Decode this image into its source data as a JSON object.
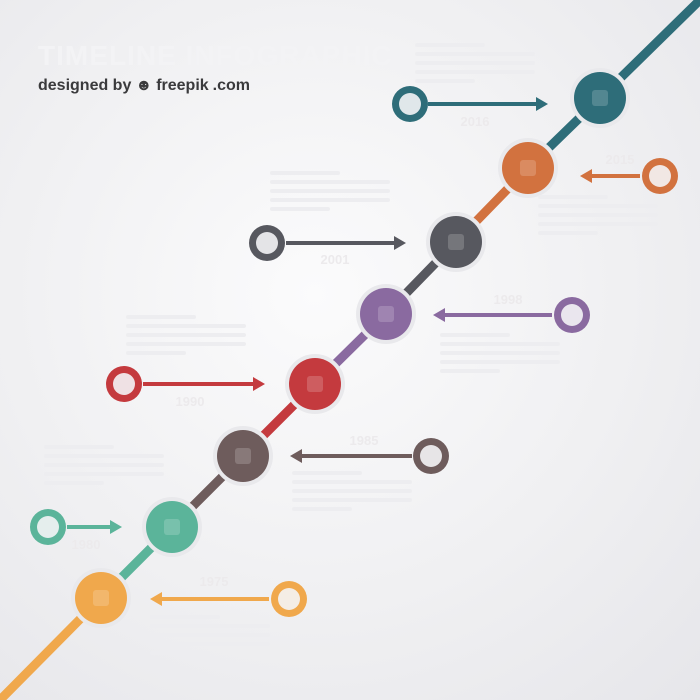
{
  "header": {
    "title": "TIMELINE INFOGRAPHIC",
    "credit_prefix": "designed by",
    "credit_brand": "freepik",
    "credit_suffix": ".com"
  },
  "colors": {
    "teal_dark": "#2e6d79",
    "orange": "#d2723f",
    "slate": "#57585f",
    "purple": "#8a6aa0",
    "red": "#c43a3e",
    "brown": "#6e5c5c",
    "mint": "#5bb49a",
    "yellow": "#f0a84c"
  },
  "milestones": [
    {
      "id": "m1",
      "year": "2016",
      "color": "#2e6d79",
      "icon": "cloud-icon"
    },
    {
      "id": "m2",
      "year": "2015",
      "color": "#d2723f",
      "icon": "gear-icon"
    },
    {
      "id": "m3",
      "year": "2001",
      "color": "#57585f",
      "icon": "chart-icon"
    },
    {
      "id": "m4",
      "year": "1998",
      "color": "#8a6aa0",
      "icon": "diamond-icon"
    },
    {
      "id": "m5",
      "year": "1990",
      "color": "#c43a3e",
      "icon": "phone-icon"
    },
    {
      "id": "m6",
      "year": "1985",
      "color": "#6e5c5c",
      "icon": "document-icon"
    },
    {
      "id": "m7",
      "year": "1980",
      "color": "#5bb49a",
      "icon": "mail-icon"
    },
    {
      "id": "m8",
      "year": "1975",
      "color": "#f0a84c",
      "icon": "lightbulb-icon"
    }
  ]
}
